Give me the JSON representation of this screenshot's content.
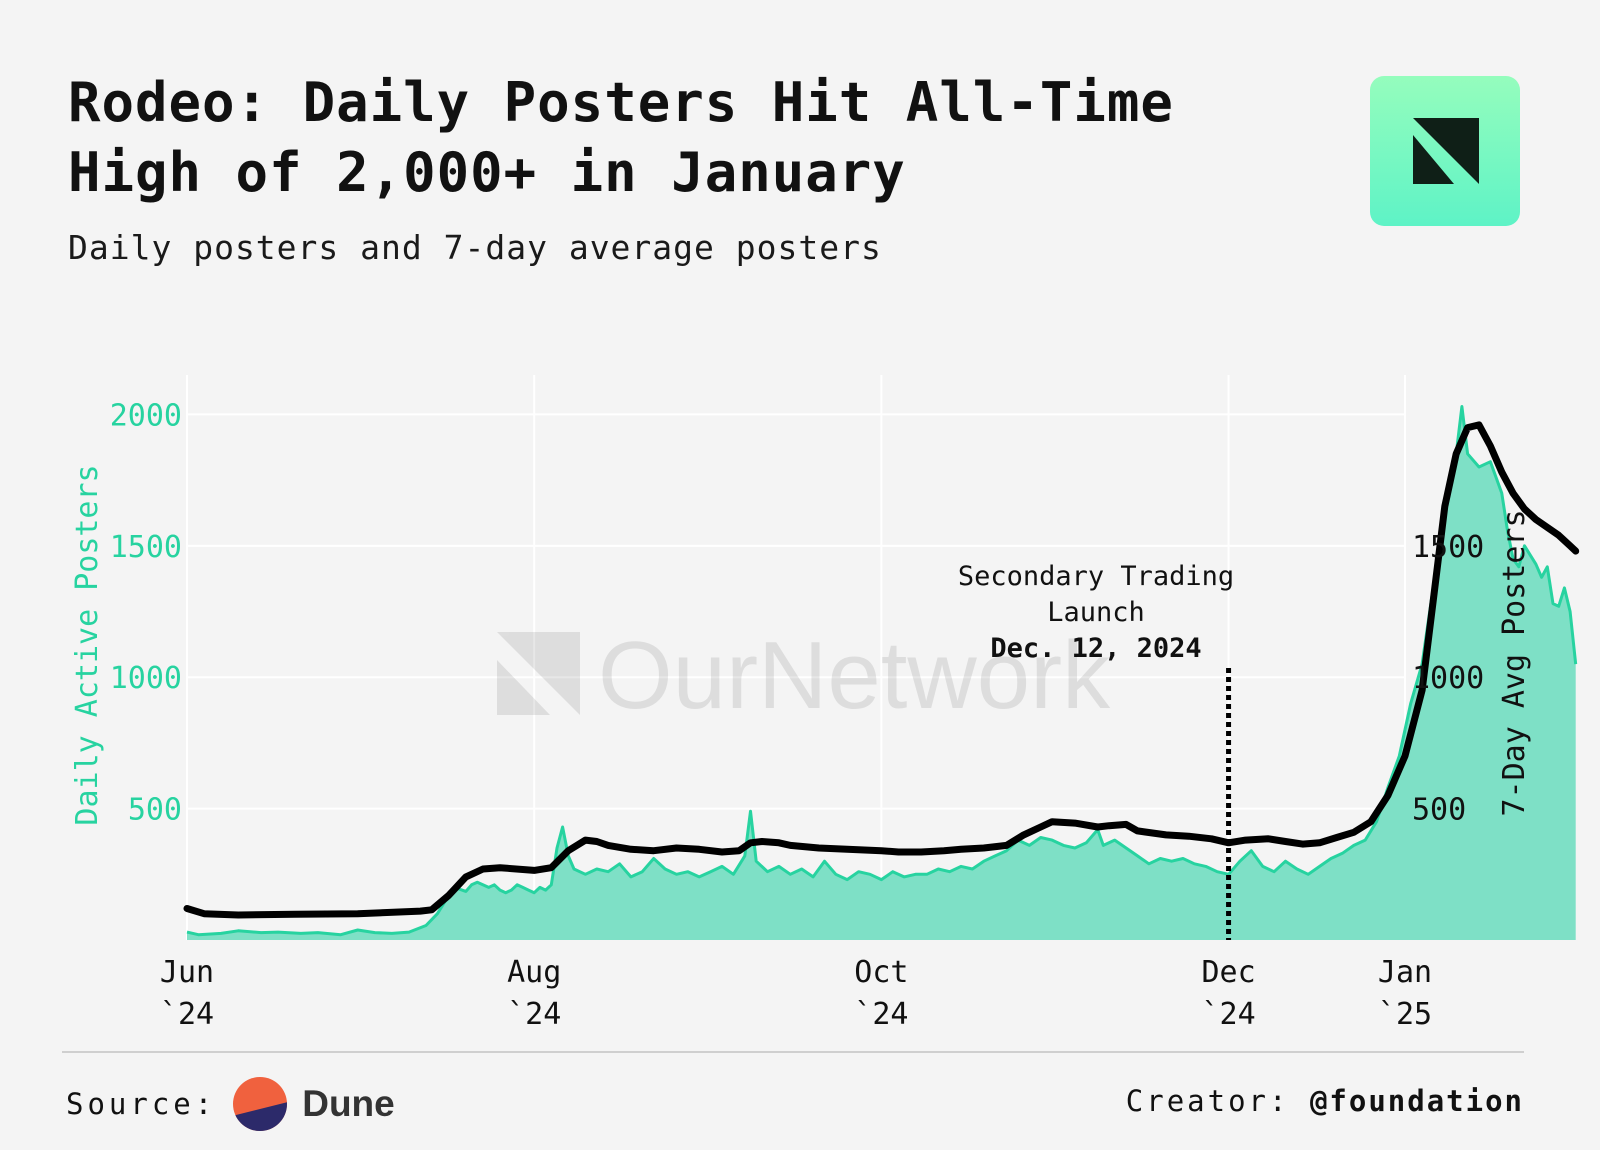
{
  "header": {
    "title_bold": "Rodeo:",
    "title_rest": "Daily Posters Hit All-Time High of 2,000+ in January",
    "subtitle": "Daily posters and 7-day average posters"
  },
  "watermark": {
    "text": "OurNetwork"
  },
  "footer": {
    "source_label": "Source:",
    "source_name": "Dune",
    "creator_label": "Creator:",
    "creator_handle": "@foundation"
  },
  "colors": {
    "daily": "#27d3a0",
    "daily_fill": "#7ee0c6",
    "average": "#000000",
    "left_axis": "#27d3a0",
    "background": "#f4f4f4"
  },
  "chart_data": {
    "type": "area",
    "y_left": {
      "label": "Daily Active Posters",
      "ticks": [
        500,
        1000,
        1500,
        2000
      ],
      "range": [
        0,
        2150
      ]
    },
    "y_right": {
      "label": "7-Day Avg Posters",
      "ticks": [
        500,
        1000,
        1500
      ],
      "range": [
        0,
        2150
      ]
    },
    "x_ticks": [
      {
        "date": "2024-06-01",
        "line1": "Jun",
        "line2": "`24"
      },
      {
        "date": "2024-08-01",
        "line1": "Aug",
        "line2": "`24"
      },
      {
        "date": "2024-10-01",
        "line1": "Oct",
        "line2": "`24"
      },
      {
        "date": "2024-12-01",
        "line1": "Dec",
        "line2": "`24"
      },
      {
        "date": "2025-01-01",
        "line1": "Jan",
        "line2": "`25"
      }
    ],
    "annotation": {
      "date": "2024-12-01",
      "line1": "Secondary Trading",
      "line2": "Launch",
      "line3": "Dec. 12, 2024"
    },
    "series": [
      {
        "name": "Daily Active Posters",
        "axis": "left",
        "points": [
          [
            "2024-06-01",
            30
          ],
          [
            "2024-06-03",
            20
          ],
          [
            "2024-06-07",
            25
          ],
          [
            "2024-06-10",
            35
          ],
          [
            "2024-06-14",
            28
          ],
          [
            "2024-06-17",
            30
          ],
          [
            "2024-06-21",
            25
          ],
          [
            "2024-06-24",
            28
          ],
          [
            "2024-06-28",
            20
          ],
          [
            "2024-07-01",
            38
          ],
          [
            "2024-07-04",
            28
          ],
          [
            "2024-07-07",
            25
          ],
          [
            "2024-07-10",
            30
          ],
          [
            "2024-07-13",
            55
          ],
          [
            "2024-07-15",
            100
          ],
          [
            "2024-07-17",
            170
          ],
          [
            "2024-07-18",
            200
          ],
          [
            "2024-07-20",
            185
          ],
          [
            "2024-07-21",
            210
          ],
          [
            "2024-07-22",
            220
          ],
          [
            "2024-07-24",
            200
          ],
          [
            "2024-07-25",
            210
          ],
          [
            "2024-07-26",
            190
          ],
          [
            "2024-07-27",
            180
          ],
          [
            "2024-07-28",
            190
          ],
          [
            "2024-07-29",
            210
          ],
          [
            "2024-07-30",
            200
          ],
          [
            "2024-07-31",
            190
          ],
          [
            "2024-08-01",
            180
          ],
          [
            "2024-08-02",
            200
          ],
          [
            "2024-08-03",
            190
          ],
          [
            "2024-08-04",
            210
          ],
          [
            "2024-08-05",
            350
          ],
          [
            "2024-08-06",
            430
          ],
          [
            "2024-08-07",
            320
          ],
          [
            "2024-08-08",
            270
          ],
          [
            "2024-08-10",
            250
          ],
          [
            "2024-08-12",
            270
          ],
          [
            "2024-08-14",
            260
          ],
          [
            "2024-08-16",
            290
          ],
          [
            "2024-08-18",
            240
          ],
          [
            "2024-08-20",
            260
          ],
          [
            "2024-08-22",
            310
          ],
          [
            "2024-08-24",
            270
          ],
          [
            "2024-08-26",
            250
          ],
          [
            "2024-08-28",
            260
          ],
          [
            "2024-08-30",
            240
          ],
          [
            "2024-09-01",
            260
          ],
          [
            "2024-09-03",
            280
          ],
          [
            "2024-09-05",
            250
          ],
          [
            "2024-09-07",
            320
          ],
          [
            "2024-09-08",
            490
          ],
          [
            "2024-09-09",
            300
          ],
          [
            "2024-09-11",
            260
          ],
          [
            "2024-09-13",
            280
          ],
          [
            "2024-09-15",
            250
          ],
          [
            "2024-09-17",
            270
          ],
          [
            "2024-09-19",
            240
          ],
          [
            "2024-09-21",
            300
          ],
          [
            "2024-09-23",
            250
          ],
          [
            "2024-09-25",
            230
          ],
          [
            "2024-09-27",
            260
          ],
          [
            "2024-09-29",
            250
          ],
          [
            "2024-10-01",
            230
          ],
          [
            "2024-10-03",
            260
          ],
          [
            "2024-10-05",
            240
          ],
          [
            "2024-10-07",
            250
          ],
          [
            "2024-10-09",
            250
          ],
          [
            "2024-10-11",
            270
          ],
          [
            "2024-10-13",
            260
          ],
          [
            "2024-10-15",
            280
          ],
          [
            "2024-10-17",
            270
          ],
          [
            "2024-10-19",
            300
          ],
          [
            "2024-10-21",
            320
          ],
          [
            "2024-10-23",
            340
          ],
          [
            "2024-10-25",
            380
          ],
          [
            "2024-10-27",
            360
          ],
          [
            "2024-10-29",
            390
          ],
          [
            "2024-10-31",
            380
          ],
          [
            "2024-11-02",
            360
          ],
          [
            "2024-11-04",
            350
          ],
          [
            "2024-11-06",
            370
          ],
          [
            "2024-11-08",
            420
          ],
          [
            "2024-11-09",
            360
          ],
          [
            "2024-11-11",
            380
          ],
          [
            "2024-11-13",
            350
          ],
          [
            "2024-11-15",
            320
          ],
          [
            "2024-11-17",
            290
          ],
          [
            "2024-11-19",
            310
          ],
          [
            "2024-11-21",
            300
          ],
          [
            "2024-11-23",
            310
          ],
          [
            "2024-11-25",
            290
          ],
          [
            "2024-11-27",
            280
          ],
          [
            "2024-11-29",
            260
          ],
          [
            "2024-12-01",
            250
          ],
          [
            "2024-12-03",
            300
          ],
          [
            "2024-12-05",
            340
          ],
          [
            "2024-12-07",
            280
          ],
          [
            "2024-12-09",
            260
          ],
          [
            "2024-12-11",
            300
          ],
          [
            "2024-12-13",
            270
          ],
          [
            "2024-12-15",
            250
          ],
          [
            "2024-12-17",
            280
          ],
          [
            "2024-12-19",
            310
          ],
          [
            "2024-12-21",
            330
          ],
          [
            "2024-12-23",
            360
          ],
          [
            "2024-12-25",
            380
          ],
          [
            "2024-12-27",
            450
          ],
          [
            "2024-12-29",
            580
          ],
          [
            "2024-12-31",
            700
          ],
          [
            "2025-01-02",
            900
          ],
          [
            "2025-01-04",
            1050
          ],
          [
            "2025-01-06",
            1350
          ],
          [
            "2025-01-08",
            1650
          ],
          [
            "2025-01-10",
            1850
          ],
          [
            "2025-01-11",
            2030
          ],
          [
            "2025-01-12",
            1850
          ],
          [
            "2025-01-14",
            1800
          ],
          [
            "2025-01-16",
            1820
          ],
          [
            "2025-01-17",
            1760
          ],
          [
            "2025-01-18",
            1700
          ],
          [
            "2025-01-19",
            1560
          ],
          [
            "2025-01-20",
            1450
          ],
          [
            "2025-01-21",
            1420
          ],
          [
            "2025-01-22",
            1500
          ],
          [
            "2025-01-24",
            1430
          ],
          [
            "2025-01-25",
            1380
          ],
          [
            "2025-01-26",
            1420
          ],
          [
            "2025-01-27",
            1280
          ],
          [
            "2025-01-28",
            1270
          ],
          [
            "2025-01-29",
            1340
          ],
          [
            "2025-01-30",
            1250
          ],
          [
            "2025-01-31",
            1050
          ]
        ]
      },
      {
        "name": "7-Day Avg Posters",
        "axis": "right",
        "points": [
          [
            "2024-06-01",
            120
          ],
          [
            "2024-06-04",
            100
          ],
          [
            "2024-06-10",
            95
          ],
          [
            "2024-06-20",
            98
          ],
          [
            "2024-07-01",
            100
          ],
          [
            "2024-07-12",
            110
          ],
          [
            "2024-07-14",
            115
          ],
          [
            "2024-07-17",
            170
          ],
          [
            "2024-07-20",
            240
          ],
          [
            "2024-07-23",
            270
          ],
          [
            "2024-07-26",
            275
          ],
          [
            "2024-08-01",
            265
          ],
          [
            "2024-08-04",
            275
          ],
          [
            "2024-08-07",
            340
          ],
          [
            "2024-08-10",
            380
          ],
          [
            "2024-08-12",
            375
          ],
          [
            "2024-08-14",
            360
          ],
          [
            "2024-08-18",
            345
          ],
          [
            "2024-08-22",
            340
          ],
          [
            "2024-08-26",
            350
          ],
          [
            "2024-08-30",
            345
          ],
          [
            "2024-09-03",
            335
          ],
          [
            "2024-09-06",
            340
          ],
          [
            "2024-09-08",
            370
          ],
          [
            "2024-09-10",
            375
          ],
          [
            "2024-09-13",
            370
          ],
          [
            "2024-09-15",
            360
          ],
          [
            "2024-09-20",
            350
          ],
          [
            "2024-09-25",
            345
          ],
          [
            "2024-10-01",
            340
          ],
          [
            "2024-10-04",
            335
          ],
          [
            "2024-10-08",
            335
          ],
          [
            "2024-10-12",
            340
          ],
          [
            "2024-10-15",
            345
          ],
          [
            "2024-10-19",
            350
          ],
          [
            "2024-10-23",
            360
          ],
          [
            "2024-10-26",
            400
          ],
          [
            "2024-10-29",
            430
          ],
          [
            "2024-10-31",
            450
          ],
          [
            "2024-11-04",
            445
          ],
          [
            "2024-11-08",
            430
          ],
          [
            "2024-11-10",
            435
          ],
          [
            "2024-11-13",
            440
          ],
          [
            "2024-11-15",
            415
          ],
          [
            "2024-11-20",
            400
          ],
          [
            "2024-11-24",
            395
          ],
          [
            "2024-11-28",
            385
          ],
          [
            "2024-12-01",
            370
          ],
          [
            "2024-12-04",
            380
          ],
          [
            "2024-12-08",
            385
          ],
          [
            "2024-12-11",
            375
          ],
          [
            "2024-12-14",
            365
          ],
          [
            "2024-12-17",
            370
          ],
          [
            "2024-12-20",
            390
          ],
          [
            "2024-12-23",
            410
          ],
          [
            "2024-12-26",
            450
          ],
          [
            "2024-12-29",
            550
          ],
          [
            "2025-01-01",
            700
          ],
          [
            "2025-01-04",
            950
          ],
          [
            "2025-01-06",
            1300
          ],
          [
            "2025-01-08",
            1650
          ],
          [
            "2025-01-10",
            1850
          ],
          [
            "2025-01-12",
            1950
          ],
          [
            "2025-01-14",
            1960
          ],
          [
            "2025-01-16",
            1880
          ],
          [
            "2025-01-18",
            1780
          ],
          [
            "2025-01-20",
            1700
          ],
          [
            "2025-01-22",
            1640
          ],
          [
            "2025-01-24",
            1600
          ],
          [
            "2025-01-26",
            1570
          ],
          [
            "2025-01-28",
            1540
          ],
          [
            "2025-01-30",
            1500
          ],
          [
            "2025-01-31",
            1480
          ]
        ]
      }
    ]
  }
}
